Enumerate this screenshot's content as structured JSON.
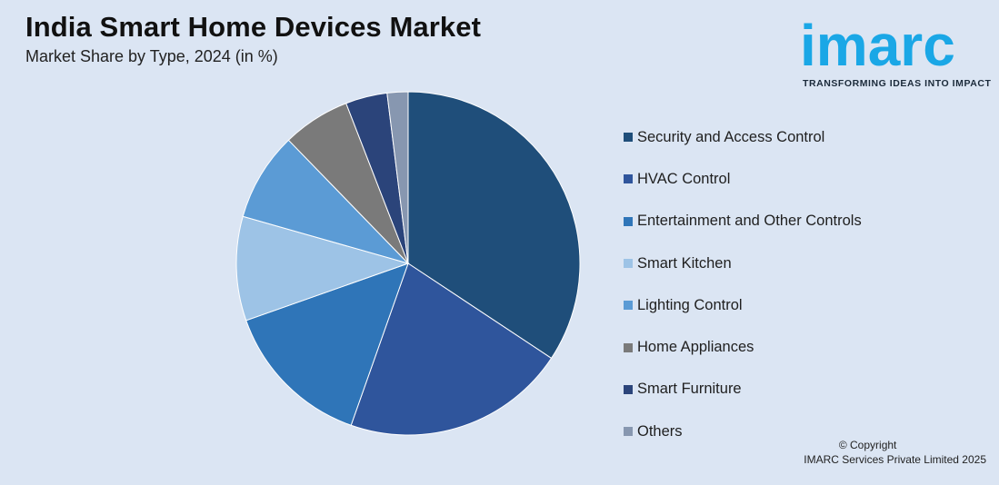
{
  "header": {
    "title": "India Smart Home Devices Market",
    "subtitle": "Market Share by Type, 2024 (in %)"
  },
  "logo": {
    "word": "imarc",
    "tagline": "TRANSFORMING IDEAS INTO IMPACT",
    "color": "#1aa7e6"
  },
  "chart_data": {
    "type": "pie",
    "title": "India Smart Home Devices Market",
    "subtitle": "Market Share by Type, 2024 (in %)",
    "legend_position": "right",
    "start_angle_deg": 0,
    "direction": "clockwise",
    "slices": [
      {
        "label": "Security and Access Control",
        "value": 35.0,
        "color": "#1f4e7a"
      },
      {
        "label": "HVAC Control",
        "value": 21.5,
        "color": "#2f559c"
      },
      {
        "label": "Entertainment and Other Controls",
        "value": 14.5,
        "color": "#2f75b8"
      },
      {
        "label": "Smart Kitchen",
        "value": 10.0,
        "color": "#9dc3e6"
      },
      {
        "label": "Lighting Control",
        "value": 8.5,
        "color": "#5b9bd5"
      },
      {
        "label": "Home Appliances",
        "value": 6.5,
        "color": "#7a7a7a"
      },
      {
        "label": "Smart Furniture",
        "value": 4.0,
        "color": "#2b447a"
      },
      {
        "label": "Others",
        "value": 2.0,
        "color": "#8797b0"
      }
    ]
  },
  "footer": {
    "copyright_line1": "© Copyright",
    "copyright_line2": "IMARC Services Private Limited 2025"
  }
}
